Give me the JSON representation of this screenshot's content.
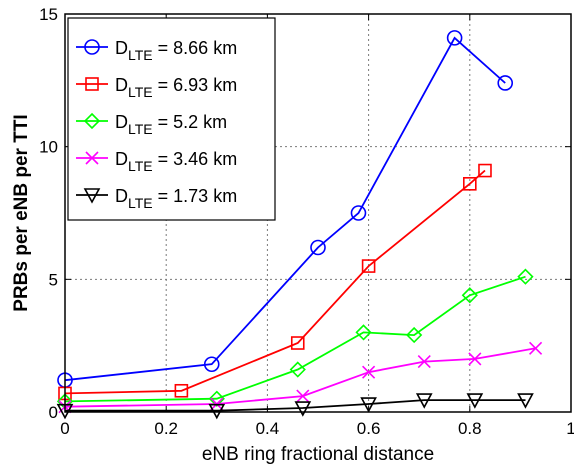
{
  "chart_data": {
    "type": "line",
    "xlabel": "eNB ring fractional distance",
    "ylabel": "PRBs per eNB per TTI",
    "xlim": [
      0,
      1
    ],
    "ylim": [
      0,
      15
    ],
    "xticks": [
      "0",
      "0.2",
      "0.4",
      "0.6",
      "0.8",
      "1"
    ],
    "yticks": [
      "0",
      "5",
      "10",
      "15"
    ],
    "grid": true,
    "legend_position": "top-left",
    "series": [
      {
        "name_main": "D",
        "name_sub": "LTE",
        "name_rest": " = 8.66 km",
        "color": "#0000ff",
        "marker": "circle",
        "x": [
          0,
          0.29,
          0.5,
          0.58,
          0.77,
          0.87
        ],
        "y": [
          1.2,
          1.8,
          6.2,
          7.5,
          14.1,
          12.4
        ]
      },
      {
        "name_main": "D",
        "name_sub": "LTE",
        "name_rest": " = 6.93 km",
        "color": "#ff0000",
        "marker": "square",
        "x": [
          0,
          0.23,
          0.46,
          0.6,
          0.8,
          0.83
        ],
        "y": [
          0.7,
          0.8,
          2.6,
          5.5,
          8.6,
          9.1
        ]
      },
      {
        "name_main": "D",
        "name_sub": "LTE",
        "name_rest": " = 5.2 km",
        "color": "#00ff00",
        "marker": "diamond",
        "x": [
          0,
          0.3,
          0.46,
          0.59,
          0.69,
          0.8,
          0.91
        ],
        "y": [
          0.4,
          0.5,
          1.6,
          3.0,
          2.9,
          4.4,
          5.1
        ]
      },
      {
        "name_main": "D",
        "name_sub": "LTE",
        "name_rest": " = 3.46 km",
        "color": "#ff00ff",
        "marker": "x",
        "x": [
          0,
          0.3,
          0.47,
          0.6,
          0.71,
          0.81,
          0.93
        ],
        "y": [
          0.2,
          0.3,
          0.6,
          1.5,
          1.9,
          2.0,
          2.4
        ]
      },
      {
        "name_main": "D",
        "name_sub": "LTE",
        "name_rest": " = 1.73 km",
        "color": "#000000",
        "marker": "triangle-down",
        "x": [
          0,
          0.3,
          0.47,
          0.6,
          0.71,
          0.81,
          0.91
        ],
        "y": [
          0.05,
          0.05,
          0.15,
          0.3,
          0.45,
          0.45,
          0.45
        ]
      }
    ]
  }
}
